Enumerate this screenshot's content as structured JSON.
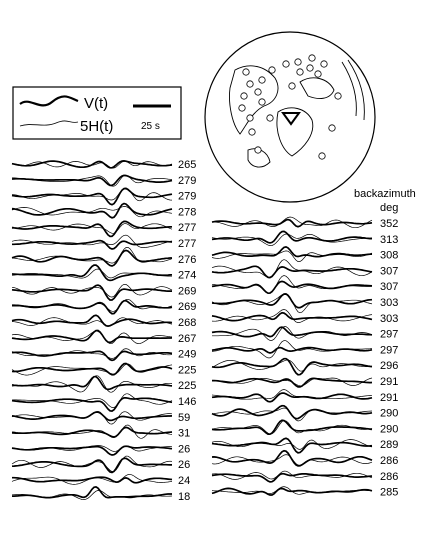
{
  "legend": {
    "vertical_label": "V(t)",
    "horizontal_label": "5H(t)",
    "scale_label": "25 s"
  },
  "right_header": {
    "line1": "backazimuth",
    "line2": "deg"
  },
  "left_backazimuths": [
    "265",
    "279",
    "279",
    "278",
    "277",
    "277",
    "276",
    "274",
    "269",
    "269",
    "268",
    "267",
    "249",
    "225",
    "225",
    "146",
    "59",
    "31",
    "26",
    "26",
    "24",
    "18"
  ],
  "right_backazimuths": [
    "352",
    "313",
    "308",
    "307",
    "307",
    "303",
    "303",
    "297",
    "297",
    "296",
    "291",
    "291",
    "290",
    "290",
    "289",
    "286",
    "286",
    "285"
  ],
  "colors": {
    "ink": "#000000",
    "background": "#ffffff"
  }
}
